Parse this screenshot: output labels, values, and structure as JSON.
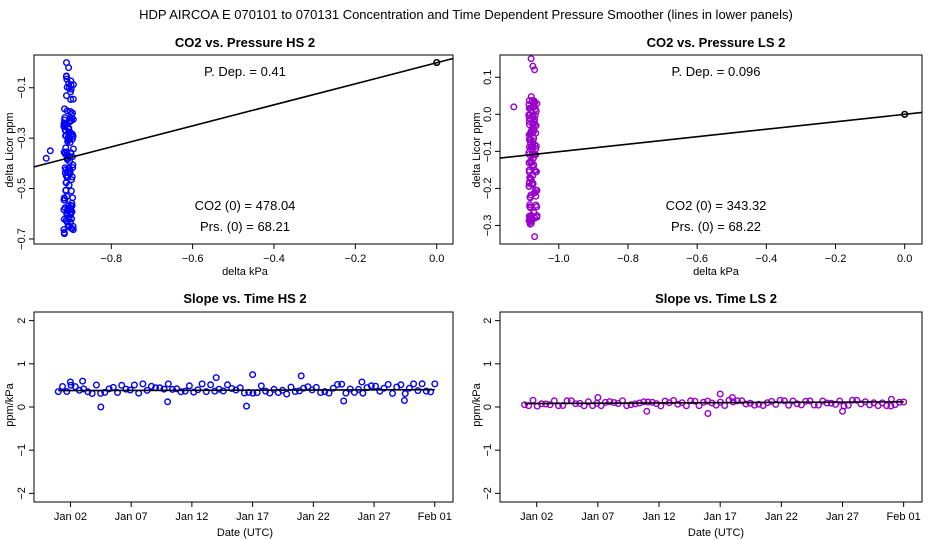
{
  "figure": {
    "suptitle": "HDP    AIRCOA E    070101 to 070131    Concentration and Time Dependent Pressure Smoother (lines in lower panels)"
  },
  "chart_data": [
    {
      "id": "p1",
      "type": "scatter",
      "title": "CO2 vs. Pressure HS 2",
      "xlabel": "delta kPa",
      "ylabel": "delta Licor ppm",
      "xlim": [
        -0.99,
        0.04
      ],
      "ylim": [
        -0.72,
        0.03
      ],
      "xticks": [
        -0.8,
        -0.6,
        -0.4,
        -0.2,
        0.0
      ],
      "xtick_labels": [
        "−0.8",
        "−0.6",
        "−0.4",
        "−0.2",
        "0.0"
      ],
      "yticks": [
        -0.7,
        -0.5,
        -0.3,
        -0.1
      ],
      "ytick_labels": [
        "−0.7",
        "−0.5",
        "−0.3",
        "−0.1"
      ],
      "point_color": "#0000ff",
      "cluster": {
        "center": -0.905,
        "spread": 0.012,
        "ymin": -0.68,
        "ymax": -0.05,
        "n": 120,
        "seed": 11
      },
      "outliers": [
        [
          -0.91,
          0.0
        ],
        [
          -0.905,
          -0.02
        ],
        [
          -0.96,
          -0.38
        ],
        [
          -0.95,
          -0.35
        ]
      ],
      "fit_line": {
        "x": [
          -0.99,
          0.04
        ],
        "y": [
          -0.414,
          0.016
        ]
      },
      "highlight_point": [
        0.0,
        0.0
      ],
      "annotations": {
        "pdep": "P. Dep. =  0.41",
        "co2_0": "CO2 (0) =  478.04",
        "prs_0": "Prs. (0) =  68.21"
      }
    },
    {
      "id": "p2",
      "type": "scatter",
      "title": "CO2 vs. Pressure LS 2",
      "xlabel": "delta kPa",
      "ylabel": "delta Licor ppm",
      "xlim": [
        -1.17,
        0.05
      ],
      "ylim": [
        -0.35,
        0.16
      ],
      "xticks": [
        -1.0,
        -0.8,
        -0.6,
        -0.4,
        -0.2,
        0.0
      ],
      "xtick_labels": [
        "−1.0",
        "−0.8",
        "−0.6",
        "−0.4",
        "−0.2",
        "0.0"
      ],
      "yticks": [
        -0.3,
        -0.2,
        -0.1,
        0.0,
        0.1
      ],
      "ytick_labels": [
        "−0.3",
        "−0.2",
        "−0.1",
        "0.0",
        "0.1"
      ],
      "point_color": "#9900cc",
      "cluster": {
        "center": -1.075,
        "spread": 0.012,
        "ymin": -0.3,
        "ymax": 0.05,
        "n": 120,
        "seed": 23
      },
      "outliers": [
        [
          -1.08,
          0.15
        ],
        [
          -1.075,
          0.13
        ],
        [
          -1.07,
          0.12
        ],
        [
          -1.13,
          0.02
        ],
        [
          -1.07,
          -0.33
        ]
      ],
      "fit_line": {
        "x": [
          -1.17,
          0.05
        ],
        "y": [
          -0.118,
          0.005
        ]
      },
      "highlight_point": [
        0.0,
        0.0
      ],
      "annotations": {
        "pdep": "P. Dep. =  0.096",
        "co2_0": "CO2 (0) =  343.32",
        "prs_0": "Prs. (0) =  68.22"
      }
    },
    {
      "id": "p3",
      "type": "scatter",
      "title": "Slope vs. Time HS 2",
      "xlabel": "Date (UTC)",
      "ylabel": "ppm/kPa",
      "xlim": [
        -2.0,
        32.5
      ],
      "ylim": [
        -2.2,
        2.2
      ],
      "xticks": [
        1,
        6,
        11,
        16,
        21,
        26,
        31
      ],
      "xtick_labels": [
        "Jan 02",
        "Jan 07",
        "Jan 12",
        "Jan 17",
        "Jan 22",
        "Jan 27",
        "Feb 01"
      ],
      "yticks": [
        -2,
        -1,
        0,
        1,
        2
      ],
      "ytick_labels": [
        "−2",
        "−1",
        "0",
        "1",
        "2"
      ],
      "point_color": "#0000ff",
      "series": {
        "x_start": 0.0,
        "x_end": 31.0,
        "n": 90,
        "base": 0.42,
        "spread": 0.12,
        "seed": 5
      },
      "extra_points": [
        [
          2.0,
          0.6
        ],
        [
          1.0,
          0.58
        ],
        [
          3.5,
          0.0
        ],
        [
          9.0,
          0.12
        ],
        [
          15.5,
          0.02
        ],
        [
          23.5,
          0.14
        ],
        [
          28.5,
          0.15
        ],
        [
          13.0,
          0.68
        ],
        [
          16.0,
          0.75
        ],
        [
          20.0,
          0.72
        ],
        [
          25.0,
          0.58
        ]
      ],
      "smoother": {
        "x": [
          0.0,
          31.0
        ],
        "y": [
          0.38,
          0.4
        ]
      }
    },
    {
      "id": "p4",
      "type": "scatter",
      "title": "Slope vs. Time LS 2",
      "xlabel": "Date (UTC)",
      "ylabel": "ppm/kPa",
      "xlim": [
        -2.0,
        32.5
      ],
      "ylim": [
        -2.2,
        2.2
      ],
      "xticks": [
        1,
        6,
        11,
        16,
        21,
        26,
        31
      ],
      "xtick_labels": [
        "Jan 02",
        "Jan 07",
        "Jan 12",
        "Jan 17",
        "Jan 22",
        "Jan 27",
        "Feb 01"
      ],
      "yticks": [
        -2,
        -1,
        0,
        1,
        2
      ],
      "ytick_labels": [
        "−2",
        "−1",
        "0",
        "1",
        "2"
      ],
      "point_color": "#9900cc",
      "series": {
        "x_start": 0.0,
        "x_end": 31.0,
        "n": 90,
        "base": 0.09,
        "spread": 0.07,
        "seed": 9
      },
      "extra_points": [
        [
          6.0,
          0.22
        ],
        [
          10.0,
          -0.1
        ],
        [
          15.0,
          -0.15
        ],
        [
          16.0,
          0.3
        ],
        [
          17.0,
          0.22
        ],
        [
          26.0,
          -0.1
        ],
        [
          30.0,
          0.18
        ]
      ],
      "smoother": {
        "x": [
          0.0,
          31.0
        ],
        "y": [
          0.08,
          0.12
        ]
      }
    }
  ]
}
